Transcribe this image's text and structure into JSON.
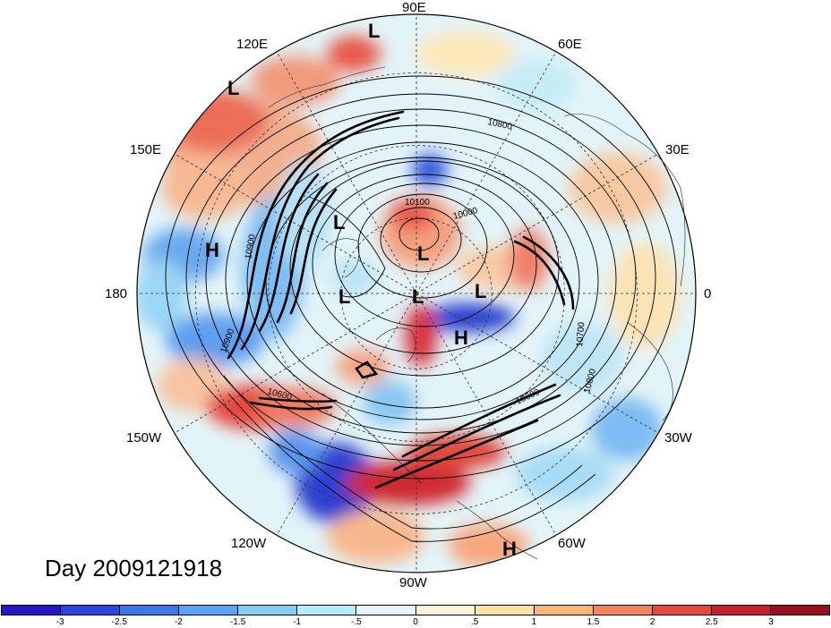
{
  "longitude_labels": [
    {
      "id": "90E",
      "text": "90E"
    },
    {
      "id": "60E",
      "text": "60E"
    },
    {
      "id": "30E",
      "text": "30E"
    },
    {
      "id": "0",
      "text": "0"
    },
    {
      "id": "30W",
      "text": "30W"
    },
    {
      "id": "60W",
      "text": "60W"
    },
    {
      "id": "90W",
      "text": "90W"
    },
    {
      "id": "120W",
      "text": "120W"
    },
    {
      "id": "150W",
      "text": "150W"
    },
    {
      "id": "180",
      "text": "180"
    },
    {
      "id": "150E",
      "text": "150E"
    },
    {
      "id": "120E",
      "text": "120E"
    }
  ],
  "pressure_centers": [
    {
      "text": "L"
    },
    {
      "text": "L"
    },
    {
      "text": "L"
    },
    {
      "text": "L"
    },
    {
      "text": "L"
    },
    {
      "text": "L"
    },
    {
      "text": "L"
    },
    {
      "text": "H"
    },
    {
      "text": "H"
    },
    {
      "text": "H"
    }
  ],
  "contour_labels": [
    "10800",
    "10100",
    "10000",
    "10900",
    "10900",
    "10700",
    "10800",
    "10600",
    "10600"
  ],
  "day_label": "Day 2009121918",
  "colorbar": {
    "colors": [
      "#2a16c8",
      "#2c44e0",
      "#3b78ee",
      "#5aa3f2",
      "#82cdf5",
      "#b4ecf8",
      "#e2f7fb",
      "#fdf7d8",
      "#fde3a4",
      "#fbb677",
      "#f5835a",
      "#e8473b",
      "#c81f2a",
      "#9b0e1e"
    ],
    "ticks": [
      "-3",
      "-2.5",
      "-2",
      "-1.5",
      "-1",
      "-.5",
      "0",
      ".5",
      "1",
      "1.5",
      "2",
      "2.5",
      "3"
    ]
  }
}
